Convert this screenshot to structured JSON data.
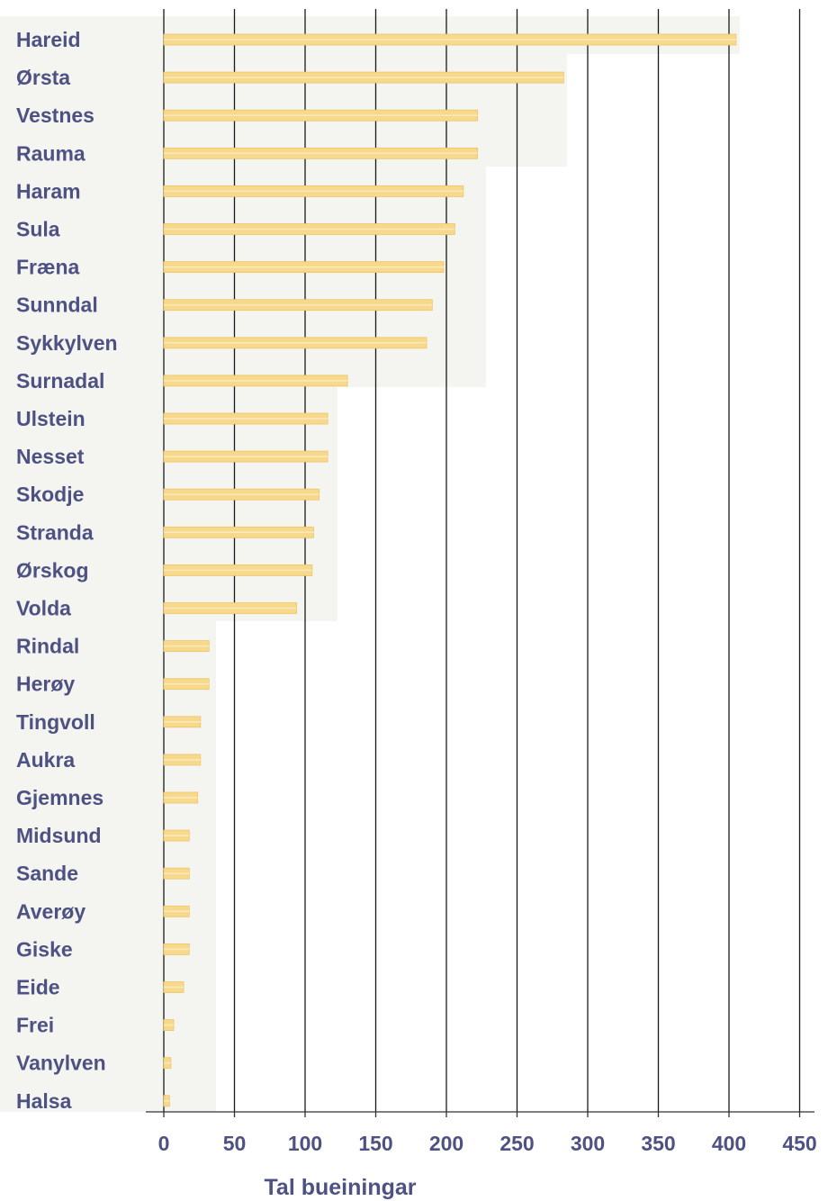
{
  "chart_data": {
    "type": "bar",
    "orientation": "horizontal",
    "xlabel": "Tal bueiningar",
    "ylabel": "",
    "xlim": [
      0,
      450
    ],
    "ticks": [
      "0",
      "50",
      "100",
      "150",
      "200",
      "250",
      "300",
      "350",
      "400",
      "450"
    ],
    "grid": true,
    "categories": [
      "Hareid",
      "Ørsta",
      "Vestnes",
      "Rauma",
      "Haram",
      "Sula",
      "Fræna",
      "Sunndal",
      "Sykkylven",
      "Surnadal",
      "Ulstein",
      "Nesset",
      "Skodje",
      "Stranda",
      "Ørskog",
      "Volda",
      "Rindal",
      "Herøy",
      "Tingvoll",
      "Aukra",
      "Gjemnes",
      "Midsund",
      "Sande",
      "Averøy",
      "Giske",
      "Eide",
      "Frei",
      "Vanylven",
      "Halsa"
    ],
    "values": [
      405,
      283,
      222,
      222,
      212,
      206,
      198,
      190,
      186,
      130,
      116,
      116,
      110,
      106,
      105,
      94,
      32,
      32,
      26,
      26,
      24,
      18,
      18,
      18,
      18,
      14,
      7,
      5,
      4
    ],
    "colors": {
      "bar": "#f7d98e",
      "bar_edge": "#efc560",
      "grid": "#1a1a1a",
      "axis": "#333333",
      "text": "#4d5283",
      "band": "#f4f4f1"
    }
  }
}
